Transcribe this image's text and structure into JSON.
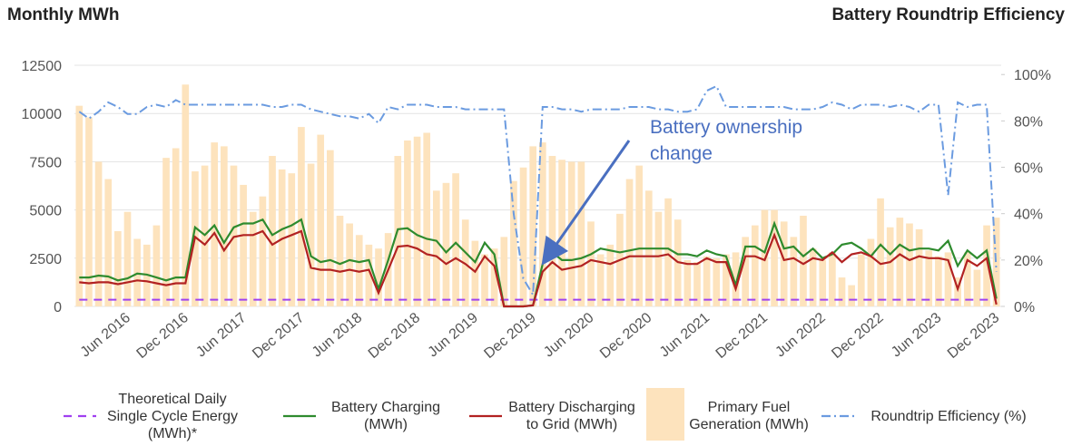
{
  "chart_data": {
    "type": "combo",
    "title": "Monthly MWh",
    "y2_title": "Battery Roundtrip Efficiency",
    "annotation": "Battery ownership change",
    "categories": [
      null,
      null,
      null,
      null,
      null,
      "Jun 2016",
      null,
      null,
      null,
      null,
      null,
      "Dec 2016",
      null,
      null,
      null,
      null,
      null,
      "Jun 2017",
      null,
      null,
      null,
      null,
      null,
      "Dec 2017",
      null,
      null,
      null,
      null,
      null,
      "Jun 2018",
      null,
      null,
      null,
      null,
      null,
      "Dec 2018",
      null,
      null,
      null,
      null,
      null,
      "Jun 2019",
      null,
      null,
      null,
      null,
      null,
      "Dec 2019",
      null,
      null,
      null,
      null,
      null,
      "Jun 2020",
      null,
      null,
      null,
      null,
      null,
      "Dec 2020",
      null,
      null,
      null,
      null,
      null,
      "Jun 2021",
      null,
      null,
      null,
      null,
      null,
      "Dec 2021",
      null,
      null,
      null,
      null,
      null,
      "Jun 2022",
      null,
      null,
      null,
      null,
      null,
      "Dec 2022",
      null,
      null,
      null,
      null,
      null,
      "Jun 2023",
      null,
      null,
      null,
      null,
      null,
      "Dec 2023"
    ],
    "ylim": [
      0,
      12500
    ],
    "yticks": [
      0,
      2500,
      5000,
      7500,
      10000,
      12500
    ],
    "y2lim": [
      0,
      104
    ],
    "y2ticks": [
      {
        "value": 0,
        "label": "0%"
      },
      {
        "value": 20,
        "label": "20%"
      },
      {
        "value": 40,
        "label": "40%"
      },
      {
        "value": 60,
        "label": "60%"
      },
      {
        "value": 80,
        "label": "80%"
      },
      {
        "value": 100,
        "label": "100%"
      }
    ],
    "grid": true,
    "series": [
      {
        "name": "Theoretical Daily Single Cycle Energy (MWh)*",
        "kind": "line",
        "style": "dashed",
        "color": "#a040f0",
        "values": [
          350,
          350,
          350,
          350,
          350,
          350,
          350,
          350,
          350,
          350,
          350,
          350,
          350,
          350,
          350,
          350,
          350,
          350,
          350,
          350,
          350,
          350,
          350,
          350,
          350,
          350,
          350,
          350,
          350,
          350,
          350,
          350,
          350,
          350,
          350,
          350,
          350,
          350,
          350,
          350,
          350,
          350,
          350,
          350,
          350,
          350,
          350,
          350,
          350,
          350,
          350,
          350,
          350,
          350,
          350,
          350,
          350,
          350,
          350,
          350,
          350,
          350,
          350,
          350,
          350,
          350,
          350,
          350,
          350,
          350,
          350,
          350,
          350,
          350,
          350,
          350,
          350,
          350,
          350,
          350,
          350,
          350,
          350,
          350,
          350,
          350,
          350,
          350,
          350,
          350,
          350,
          350,
          350,
          350,
          350,
          350
        ]
      },
      {
        "name": "Battery Charging (MWh)",
        "kind": "line",
        "style": "solid",
        "color": "#2e8b2e",
        "values": [
          1500,
          1500,
          1600,
          1550,
          1350,
          1450,
          1700,
          1650,
          1500,
          1350,
          1500,
          1500,
          4100,
          3700,
          4200,
          3300,
          4100,
          4300,
          4300,
          4500,
          3700,
          4000,
          4200,
          4500,
          2600,
          2300,
          2400,
          2200,
          2400,
          2300,
          2400,
          900,
          2400,
          4000,
          4050,
          3700,
          3500,
          3400,
          2800,
          3300,
          2800,
          2300,
          3300,
          2700,
          0,
          0,
          0,
          50,
          2200,
          2800,
          2400,
          2400,
          2500,
          2700,
          3000,
          2900,
          2800,
          2900,
          3000,
          3000,
          3000,
          3000,
          2700,
          2700,
          2600,
          2900,
          2700,
          2600,
          1100,
          3100,
          3100,
          2800,
          4300,
          3000,
          3100,
          2600,
          3000,
          2500,
          2700,
          3200,
          3300,
          3000,
          2600,
          3200,
          2700,
          3200,
          2900,
          3000,
          3000,
          2900,
          3400,
          2100,
          2900,
          2500,
          2900,
          400
        ]
      },
      {
        "name": "Battery Discharging to Grid (MWh)",
        "kind": "line",
        "style": "solid",
        "color": "#b22222",
        "values": [
          1250,
          1200,
          1250,
          1250,
          1150,
          1250,
          1350,
          1300,
          1200,
          1100,
          1200,
          1200,
          3600,
          3200,
          3800,
          2900,
          3600,
          3700,
          3700,
          3900,
          3200,
          3500,
          3700,
          3900,
          2000,
          1900,
          1900,
          1800,
          1900,
          1800,
          1900,
          700,
          1900,
          3100,
          3150,
          3000,
          2700,
          2600,
          2200,
          2500,
          2200,
          1800,
          2600,
          2100,
          0,
          0,
          0,
          50,
          1800,
          2300,
          1900,
          2000,
          2100,
          2400,
          2300,
          2200,
          2400,
          2600,
          2600,
          2600,
          2600,
          2700,
          2300,
          2200,
          2200,
          2500,
          2300,
          2300,
          900,
          2600,
          2600,
          2400,
          3700,
          2400,
          2500,
          2200,
          2500,
          2400,
          2800,
          2300,
          2700,
          2800,
          2600,
          2200,
          2300,
          2700,
          2400,
          2600,
          2500,
          2500,
          2400,
          900,
          2400,
          2100,
          2500,
          100
        ]
      },
      {
        "name": "Primary Fuel Generation (MWh)",
        "kind": "bar",
        "color": "#fde3bd",
        "values": [
          10400,
          9800,
          7500,
          6600,
          3900,
          4900,
          3500,
          3200,
          4200,
          7700,
          8200,
          11500,
          7000,
          7300,
          8500,
          8300,
          7300,
          6300,
          4900,
          5700,
          7800,
          7100,
          6900,
          9300,
          7400,
          8900,
          8100,
          4700,
          4300,
          3700,
          3200,
          3000,
          3800,
          7800,
          8600,
          8800,
          9000,
          6000,
          6400,
          6900,
          4500,
          3400,
          2700,
          3000,
          3600,
          6500,
          7200,
          8300,
          8500,
          7800,
          7600,
          7500,
          7500,
          4400,
          2700,
          3200,
          4800,
          6600,
          7300,
          6000,
          4900,
          5600,
          4500,
          2400,
          2300,
          2600,
          2500,
          2700,
          2800,
          3600,
          4200,
          5000,
          5000,
          4400,
          3600,
          4700,
          3000,
          2400,
          2800,
          1500,
          1100,
          2700,
          3500,
          5600,
          4100,
          4600,
          4300,
          4000,
          2900,
          2600,
          2800,
          1500,
          2800,
          1900,
          4200,
          4600
        ]
      },
      {
        "name": "Roundtrip Efficiency (%)",
        "kind": "line",
        "style": "dashdot",
        "color": "#6b9be0",
        "axis": "y2",
        "values": [
          84,
          81,
          84,
          88,
          86,
          83,
          83,
          86,
          87,
          86,
          89,
          87,
          87,
          87,
          87,
          87,
          87,
          87,
          87,
          87,
          86,
          86,
          87,
          87,
          85,
          84,
          83,
          82,
          82,
          81,
          83,
          79,
          86,
          85,
          87,
          87,
          87,
          86,
          86,
          86,
          85,
          85,
          85,
          85,
          85,
          40,
          12,
          5,
          86,
          86,
          85,
          85,
          84,
          85,
          85,
          85,
          85,
          86,
          86,
          86,
          85,
          85,
          84,
          84,
          85,
          93,
          95,
          86,
          86,
          86,
          86,
          86,
          86,
          86,
          85,
          85,
          85,
          86,
          88,
          87,
          85,
          87,
          87,
          87,
          86,
          87,
          86,
          84,
          87,
          87,
          48,
          88,
          86,
          87,
          87,
          15
        ]
      }
    ]
  }
}
